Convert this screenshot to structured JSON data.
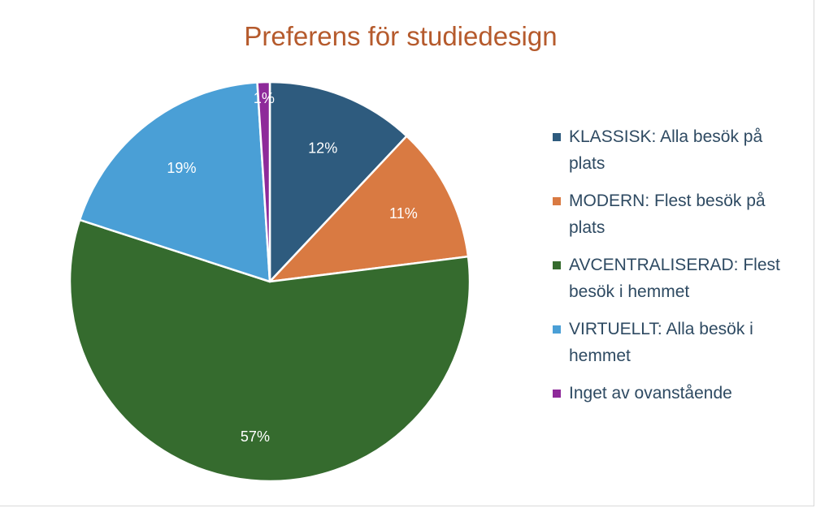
{
  "chart_data": {
    "type": "pie",
    "title": "Preferens för studiedesign",
    "categories": [
      "KLASSISK: Alla besök på plats",
      "MODERN: Flest besök på plats",
      "AVCENTRALISERAD: Flest besök i hemmet",
      "VIRTUELLT: Alla besök i hemmet",
      "Inget av ovanstående"
    ],
    "values": [
      12,
      11,
      57,
      19,
      1
    ],
    "labels": [
      "12%",
      "11%",
      "57%",
      "19%",
      "1%"
    ],
    "colors": [
      "#2e5b7e",
      "#d97a42",
      "#356b2e",
      "#4a9fd6",
      "#8e2a9a"
    ],
    "legend_position": "right",
    "grid": false
  },
  "legend": {
    "items": [
      "KLASSISK: Alla besök på plats",
      "MODERN: Flest besök på plats",
      "AVCENTRALISERAD: Flest besök i hemmet",
      "VIRTUELLT: Alla besök i hemmet",
      "Inget av ovanstående"
    ]
  }
}
